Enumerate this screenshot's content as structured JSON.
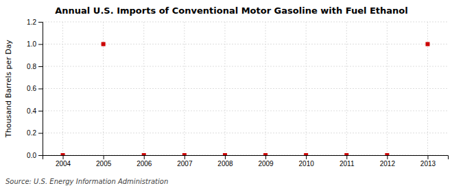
{
  "chart_data": {
    "type": "scatter",
    "title": "Annual U.S. Imports of Conventional Motor Gasoline with Fuel Ethanol",
    "ylabel": "Thousand Barrels per Day",
    "annotations": [
      "Source: U.S. Energy Information Administration"
    ],
    "x": [
      2004,
      2005,
      2006,
      2007,
      2008,
      2009,
      2010,
      2011,
      2012,
      2013
    ],
    "values": [
      0.0,
      1.0,
      0.0,
      0.0,
      0.0,
      0.0,
      0.0,
      0.0,
      0.0,
      1.0
    ],
    "color": "#CC0000",
    "marker": "square",
    "xlim": [
      2003.5,
      2013.5
    ],
    "xticks": [
      2004,
      2005,
      2006,
      2007,
      2008,
      2009,
      2010,
      2011,
      2012,
      2013
    ],
    "ylim": [
      0.0,
      1.2
    ],
    "yticks": [
      {
        "value": 0.0,
        "label": "0.0"
      },
      0.2,
      0.4,
      0.6,
      0.8,
      {
        "value": 1.0,
        "label": "1.0"
      },
      1.2
    ],
    "grid": true
  }
}
